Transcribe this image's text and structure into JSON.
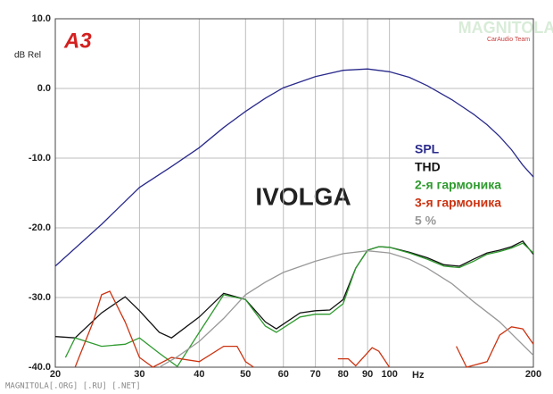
{
  "chart_data": {
    "type": "line",
    "title": "IVOLGA",
    "ylabel": "dB Rel",
    "xlabel": "Hz",
    "logo": "A3",
    "watermark": "MAGNITOLA",
    "watermark_sub": "CarAudio Team",
    "footer": "MAGNITOLA[.ORG] [.RU] [.NET]",
    "xscale": "log",
    "grid": true,
    "xlim": [
      20,
      200
    ],
    "xticks": [
      20,
      30,
      40,
      50,
      60,
      70,
      80,
      90,
      100,
      200
    ],
    "ylim": [
      -40,
      10
    ],
    "yticks": [
      {
        "value": -40,
        "label": "-40.0"
      },
      {
        "value": -30,
        "label": "-30.0"
      },
      {
        "value": -20,
        "label": "-20.0"
      },
      {
        "value": -10,
        "label": "-10.0"
      },
      {
        "value": 0,
        "label": "0.0"
      },
      {
        "value": 10,
        "label": "10.0"
      }
    ],
    "series": [
      {
        "name": "SPL",
        "color": "#2a2a8c",
        "x": [
          20,
          25,
          30,
          35,
          40,
          45,
          50,
          55,
          60,
          70,
          80,
          90,
          100,
          110,
          120,
          135,
          150,
          160,
          170,
          180,
          190,
          200
        ],
        "values": [
          -25.5,
          -19.5,
          -14.2,
          -11.2,
          -8.5,
          -5.6,
          -3.3,
          -1.4,
          0.1,
          1.7,
          2.6,
          2.8,
          2.4,
          1.6,
          0.4,
          -1.6,
          -3.7,
          -5.2,
          -6.9,
          -8.8,
          -11,
          -12.7
        ]
      },
      {
        "name": "THD",
        "color": "#111111",
        "x": [
          20,
          22,
          25,
          28,
          30,
          33,
          35,
          40,
          45,
          50,
          55,
          58,
          65,
          70,
          75,
          80,
          85,
          90,
          95,
          100,
          110,
          120,
          130,
          140,
          150,
          160,
          170,
          180,
          190,
          200
        ],
        "values": [
          -35.6,
          -35.8,
          -32.2,
          -29.9,
          -31.9,
          -35,
          -35.8,
          -32.8,
          -29.4,
          -30.3,
          -33.5,
          -34.5,
          -32.2,
          -31.9,
          -31.8,
          -30.3,
          -25.8,
          -23.2,
          -22.7,
          -22.8,
          -23.5,
          -24.3,
          -25.3,
          -25.5,
          -24.5,
          -23.6,
          -23.2,
          -22.7,
          -21.9,
          -23.8
        ]
      },
      {
        "name": "2-я гармоника",
        "color": "#2e9a2e",
        "x": [
          20,
          21,
          22,
          25,
          28,
          30,
          33,
          36,
          40,
          45,
          50,
          55,
          58,
          65,
          70,
          75,
          80,
          85,
          90,
          95,
          100,
          110,
          120,
          130,
          140,
          150,
          160,
          170,
          180,
          190,
          200
        ],
        "values": [
          null,
          -38.6,
          -35.8,
          -37,
          -36.7,
          -35.8,
          -38,
          -39.9,
          -35,
          -29.6,
          -30.3,
          -34.1,
          -35,
          -32.8,
          -32.4,
          -32.4,
          -30.9,
          -25.8,
          -23.2,
          -22.7,
          -22.8,
          -23.6,
          -24.5,
          -25.5,
          -25.7,
          -24.8,
          -23.8,
          -23.4,
          -22.9,
          -22.2,
          -23.6
        ]
      },
      {
        "name": "3-я гармоника",
        "color": "#cc3311",
        "x": [
          20,
          22,
          24,
          25,
          26,
          28,
          30,
          32,
          35,
          40,
          45,
          48,
          50,
          52,
          75,
          78,
          82,
          85,
          92,
          95,
          100,
          130,
          138,
          145,
          160,
          170,
          180,
          190,
          200
        ],
        "values": [
          null,
          -40,
          -33.5,
          -29.6,
          -29.1,
          -33.5,
          -38.6,
          -40,
          -38.6,
          -39.2,
          -37,
          -37,
          -39.2,
          -40,
          null,
          -38.8,
          -38.8,
          -39.8,
          -37.2,
          -37.7,
          -40,
          null,
          -37,
          -40,
          -39.2,
          -35.4,
          -34.2,
          -34.5,
          -36.7
        ]
      },
      {
        "name": "5 %",
        "color": "#999999",
        "x": [
          33,
          36,
          40,
          45,
          50,
          55,
          60,
          70,
          80,
          90,
          100,
          110,
          120,
          135,
          150,
          170,
          185,
          200
        ],
        "values": [
          -40,
          -38.5,
          -36.3,
          -33,
          -29.6,
          -27.8,
          -26.4,
          -24.8,
          -23.7,
          -23.3,
          -23.6,
          -24.5,
          -25.8,
          -28,
          -30.6,
          -33.5,
          -36,
          -38.3
        ]
      }
    ]
  }
}
